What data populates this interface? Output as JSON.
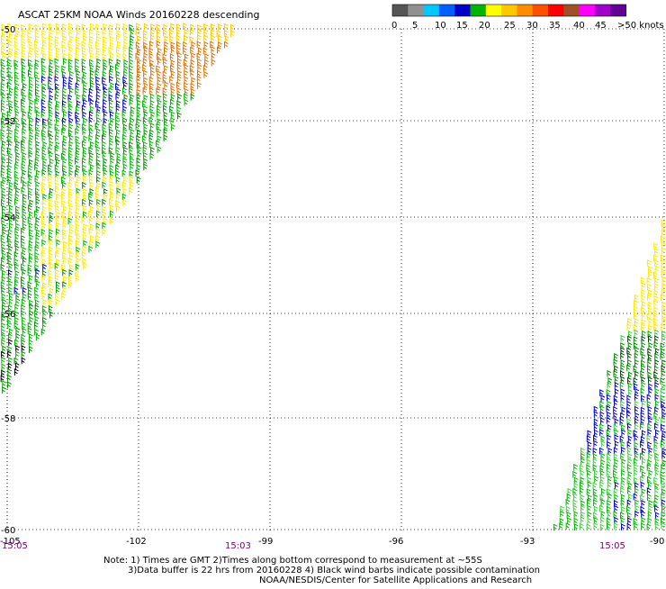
{
  "map": {
    "title": "ASCAT 25KM NOAA Winds 20160228 descending",
    "lat_min": -60,
    "lat_max": -50,
    "lon_min": -105,
    "lon_max": -90,
    "lat_labels": [
      "-50",
      "-52",
      "-54",
      "-56",
      "-58",
      "-60"
    ],
    "lon_labels": [
      "-105",
      "-102",
      "-99",
      "-96",
      "-93",
      "-90"
    ],
    "time_labels": [
      "15:05",
      "15:03",
      "15:05"
    ],
    "grid": "dotted"
  },
  "legend": {
    "colors": [
      "#555555",
      "#909090",
      "#00c8ff",
      "#0060ff",
      "#0000c8",
      "#00b400",
      "#ffff00",
      "#ffc800",
      "#ff8c00",
      "#ff5000",
      "#ff0000",
      "#a05028",
      "#ff00ff",
      "#a000c8",
      "#640096"
    ],
    "labels": [
      "0",
      "5",
      "10",
      "15",
      "20",
      "25",
      "30",
      "35",
      "40",
      "45",
      ">50 knots"
    ]
  },
  "notes": {
    "line1": "Note: 1) Times are GMT 2)Times along bottom correspond to measurement at ~55S",
    "line2": "3)Data buffer is 22 hrs from 20160228 4) Black wind barbs indicate possible contamination",
    "line3": "NOAA/NESDIS/Center for Satellite Applications and Research"
  }
}
